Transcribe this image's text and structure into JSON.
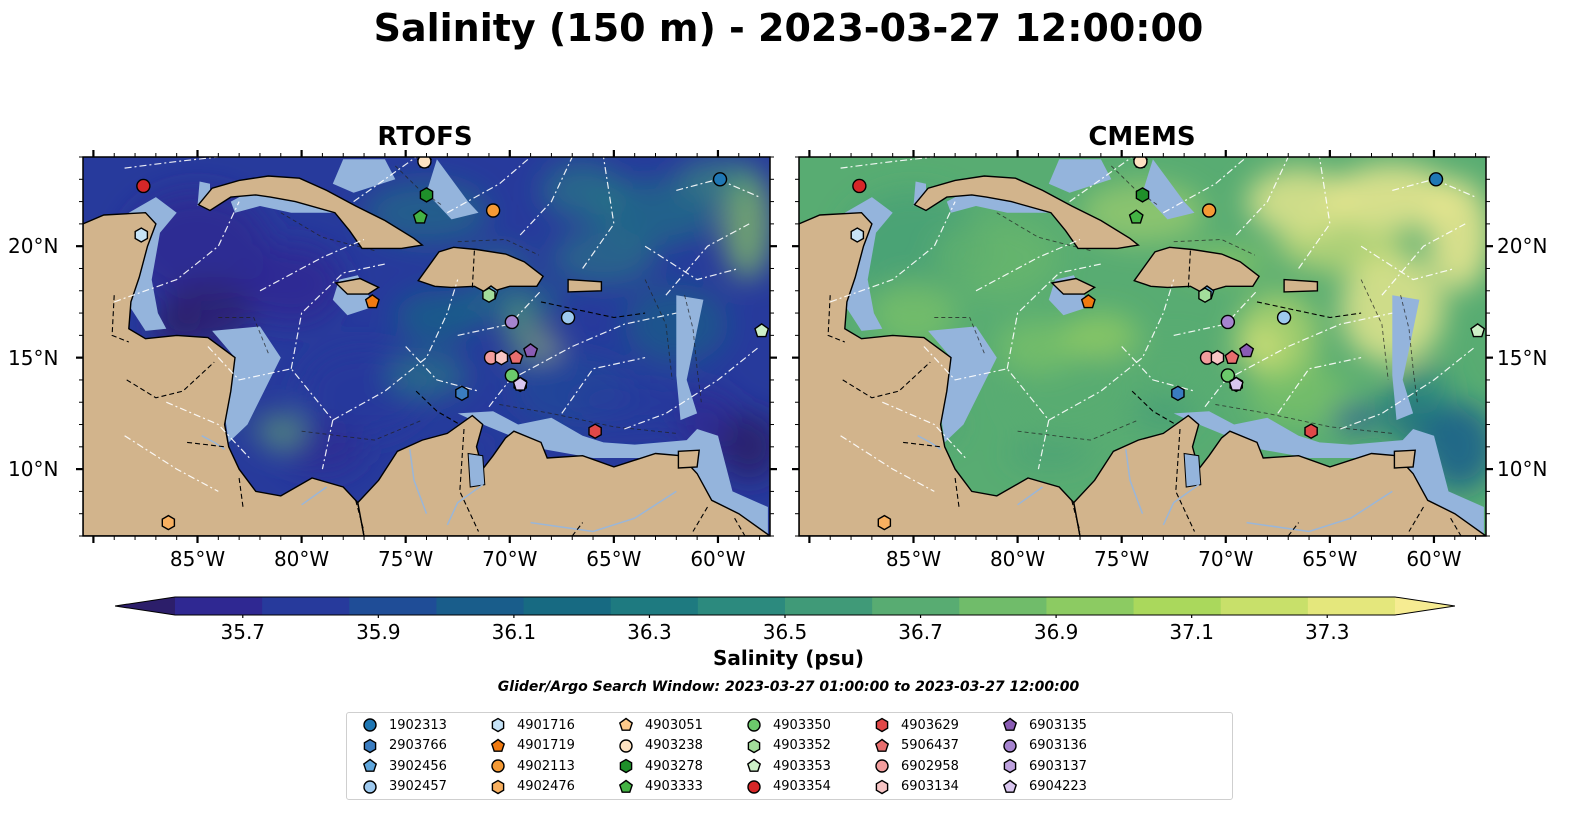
{
  "title": "Salinity (150 m) - 2023-03-27 12:00:00",
  "panels": [
    {
      "title": "RTOFS",
      "model": "rtofs"
    },
    {
      "title": "CMEMS",
      "model": "cmems"
    }
  ],
  "map": {
    "lon_range": [
      -90.5,
      -57.5
    ],
    "lat_range": [
      7,
      24
    ],
    "lon_ticks": [
      "85°W",
      "80°W",
      "75°W",
      "70°W",
      "65°W",
      "60°W"
    ],
    "lat_ticks": [
      "20°N",
      "15°N",
      "10°N"
    ],
    "colors": {
      "land": "#d2b48c",
      "shelf": "#94b4dc",
      "eez_line": "#ffffff",
      "coast_line": "#000000"
    }
  },
  "colorbar": {
    "label": "Salinity (psu)",
    "min": 35.6,
    "max": 37.4,
    "ticks": [
      "35.7",
      "35.9",
      "36.1",
      "36.3",
      "36.5",
      "36.7",
      "36.9",
      "37.1",
      "37.3"
    ],
    "colors": [
      "#2c1e6a",
      "#2f2892",
      "#273a9c",
      "#1f4d97",
      "#195d8b",
      "#176a82",
      "#1e7a80",
      "#2c8a7e",
      "#409a78",
      "#58ac72",
      "#70bc6a",
      "#8ccb62",
      "#aad85c",
      "#c8e06a",
      "#e4e77c",
      "#f6ec92"
    ],
    "extend": "both"
  },
  "search_window": "Glider/Argo Search Window: 2023-03-27 01:00:00 to 2023-03-27 12:00:00",
  "floats": [
    {
      "id": "1902313",
      "marker": "circle",
      "color": "#1f77b4",
      "lon": -59.9,
      "lat": 23.0
    },
    {
      "id": "2903766",
      "marker": "hexagon",
      "color": "#3a7cc0",
      "lon": -72.3,
      "lat": 13.4
    },
    {
      "id": "3902456",
      "marker": "pentagon",
      "color": "#5fa6dc",
      "lon": -70.9,
      "lat": 17.9
    },
    {
      "id": "3902457",
      "marker": "circle",
      "color": "#9ec9ee",
      "lon": -67.2,
      "lat": 16.8
    },
    {
      "id": "4901716",
      "marker": "hexagon",
      "color": "#c6e3f7",
      "lon": -87.7,
      "lat": 20.5
    },
    {
      "id": "4901719",
      "marker": "pentagon",
      "color": "#f07a10",
      "lon": -76.6,
      "lat": 17.5
    },
    {
      "id": "4902113",
      "marker": "circle",
      "color": "#f59a35",
      "lon": -70.8,
      "lat": 21.6
    },
    {
      "id": "4902476",
      "marker": "hexagon",
      "color": "#f8b060",
      "lon": -86.4,
      "lat": 7.6
    },
    {
      "id": "4903051",
      "marker": "pentagon",
      "color": "#fcc98a",
      "lon": -74.1,
      "lat": 23.8
    },
    {
      "id": "4903238",
      "marker": "circle",
      "color": "#fde2c2",
      "lon": -74.1,
      "lat": 23.8
    },
    {
      "id": "4903278",
      "marker": "hexagon",
      "color": "#1f8f2a",
      "lon": -74.0,
      "lat": 22.3
    },
    {
      "id": "4903333",
      "marker": "pentagon",
      "color": "#44b244",
      "lon": -74.3,
      "lat": 21.3
    },
    {
      "id": "4903350",
      "marker": "circle",
      "color": "#6cc96b",
      "lon": -69.9,
      "lat": 14.2
    },
    {
      "id": "4903352",
      "marker": "hexagon",
      "color": "#a3dd9b",
      "lon": -71.0,
      "lat": 17.8
    },
    {
      "id": "4903353",
      "marker": "pentagon",
      "color": "#cdf0c7",
      "lon": -57.9,
      "lat": 16.2
    },
    {
      "id": "4903354",
      "marker": "circle",
      "color": "#d62728",
      "lon": -87.6,
      "lat": 22.7
    },
    {
      "id": "4903629",
      "marker": "hexagon",
      "color": "#e04848",
      "lon": -65.9,
      "lat": 11.7
    },
    {
      "id": "5906437",
      "marker": "pentagon",
      "color": "#e86e6e",
      "lon": -69.7,
      "lat": 15.0
    },
    {
      "id": "6902958",
      "marker": "circle",
      "color": "#f29d9d",
      "lon": -70.9,
      "lat": 15.0
    },
    {
      "id": "6903134",
      "marker": "hexagon",
      "color": "#f7c5c5",
      "lon": -70.4,
      "lat": 15.0
    },
    {
      "id": "6903135",
      "marker": "pentagon",
      "color": "#8a5cb4",
      "lon": -69.0,
      "lat": 15.3
    },
    {
      "id": "6903136",
      "marker": "circle",
      "color": "#a684cf",
      "lon": -69.9,
      "lat": 16.6
    },
    {
      "id": "6903137",
      "marker": "hexagon",
      "color": "#bea2de",
      "lon": -69.5,
      "lat": 13.8
    },
    {
      "id": "6904223",
      "marker": "pentagon",
      "color": "#d9c6ef",
      "lon": -69.5,
      "lat": 13.8
    }
  ]
}
